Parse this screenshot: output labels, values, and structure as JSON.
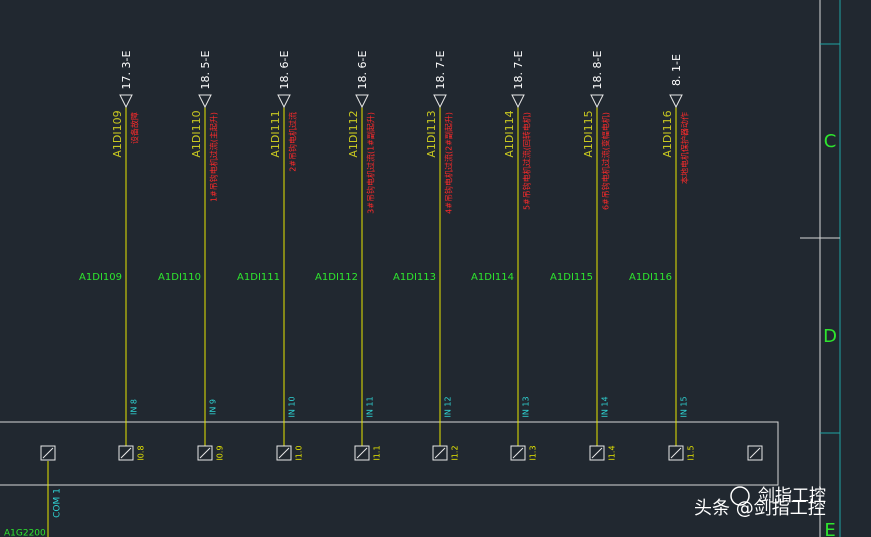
{
  "columns": [
    {
      "ref": "17. 3-E",
      "tag": "A1DI109",
      "desc": "设备故障",
      "net": "A1DI109",
      "input": "IN 8",
      "address": "I0.8"
    },
    {
      "ref": "18. 5-E",
      "tag": "A1DI110",
      "desc": "1#吊钩电机过流(主起升)",
      "net": "A1DI110",
      "input": "IN 9",
      "address": "I0.9"
    },
    {
      "ref": "18. 6-E",
      "tag": "A1DI111",
      "desc": "2#吊钩电机过流",
      "net": "A1DI111",
      "input": "IN 10",
      "address": "I1.0"
    },
    {
      "ref": "18. 6-E",
      "tag": "A1DI112",
      "desc": "3#吊钩电机过流(1#副起升)",
      "net": "A1DI112",
      "input": "IN 11",
      "address": "I1.1"
    },
    {
      "ref": "18. 7-E",
      "tag": "A1DI113",
      "desc": "4#吊钩电机过流(2#副起升)",
      "net": "A1DI113",
      "input": "IN 12",
      "address": "I1.2"
    },
    {
      "ref": "18. 7-E",
      "tag": "A1DI114",
      "desc": "5#吊钩电机过流(回转电机)",
      "net": "A1DI114",
      "input": "IN 13",
      "address": "I1.3"
    },
    {
      "ref": "18. 8-E",
      "tag": "A1DI115",
      "desc": "6#吊钩电机过流(变幅电机)",
      "net": "A1DI115",
      "input": "IN 14",
      "address": "I1.4"
    },
    {
      "ref": "8. 1-E",
      "tag": "A1DI116",
      "desc": "本地电机保护器动作",
      "net": "A1DI116",
      "input": "IN 15",
      "address": "I1.5"
    }
  ],
  "com": "COM 1",
  "wire_label": "A1G2200",
  "zones": [
    "C",
    "D",
    "E"
  ],
  "watermark": {
    "source": "头条 @剑指工控",
    "logo_text": "剑指工控"
  }
}
